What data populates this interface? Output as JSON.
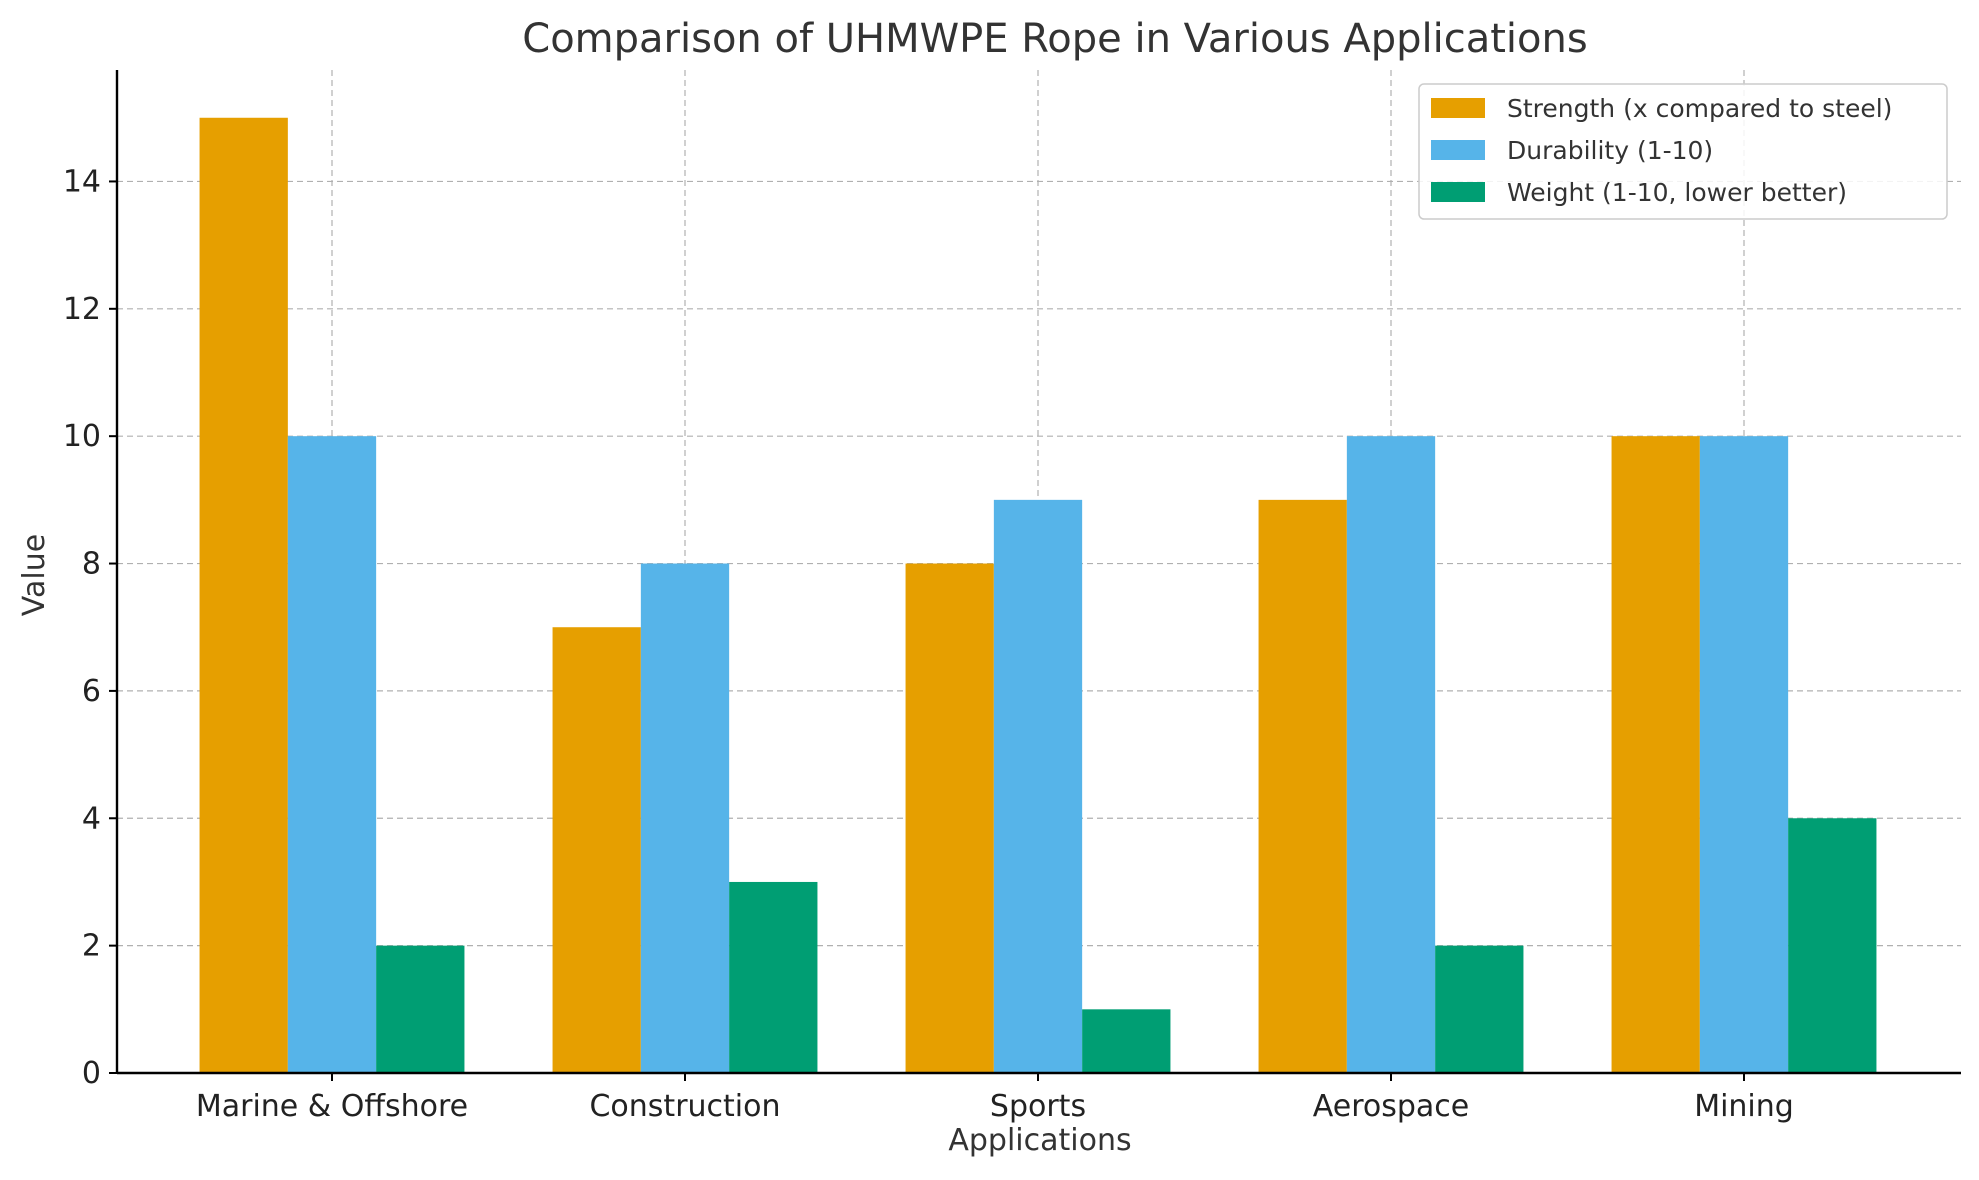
{
  "chart_data": {
    "type": "bar",
    "title": "Comparison of UHMWPE Rope in Various Applications",
    "xlabel": "Applications",
    "ylabel": "Value",
    "categories": [
      "Marine & Offshore",
      "Construction",
      "Sports",
      "Aerospace",
      "Mining"
    ],
    "series": [
      {
        "name": "Strength (x compared to steel)",
        "color": "#E69F00",
        "values": [
          15,
          7,
          8,
          9,
          10
        ]
      },
      {
        "name": "Durability (1-10)",
        "color": "#56B4E9",
        "values": [
          10,
          8,
          9,
          10,
          10
        ]
      },
      {
        "name": "Weight (1-10, lower better)",
        "color": "#009E73",
        "values": [
          2,
          3,
          1,
          2,
          4
        ]
      }
    ],
    "ylim": [
      0,
      15.75
    ],
    "yticks": [
      0,
      2,
      4,
      6,
      8,
      10,
      12,
      14
    ],
    "grid": true,
    "legend_position": "top-right"
  }
}
